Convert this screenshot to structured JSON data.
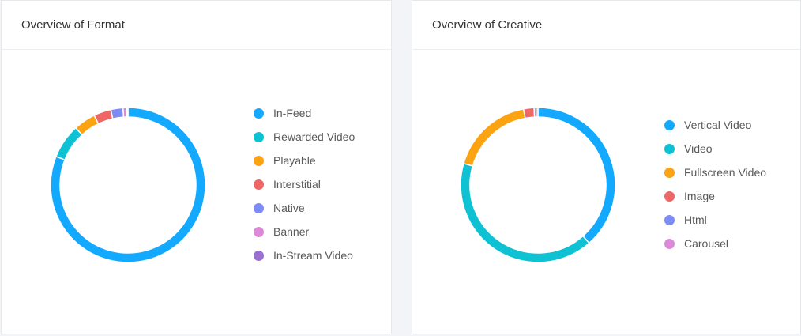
{
  "cards": [
    {
      "title": "Overview of Format"
    },
    {
      "title": "Overview of Creative"
    }
  ],
  "chart_data": [
    {
      "type": "pie",
      "title": "Overview of Format",
      "legend_position": "right",
      "categories": [
        "In-Feed",
        "Rewarded Video",
        "Playable",
        "Interstitial",
        "Native",
        "Banner",
        "In-Stream Video"
      ],
      "values": [
        79,
        7,
        4.5,
        3.5,
        2.5,
        0.8,
        0.2
      ],
      "colors": [
        "#12a9ff",
        "#0fc2d3",
        "#fca311",
        "#ee6666",
        "#7d8cf5",
        "#dc8ad8",
        "#9a6fcf"
      ]
    },
    {
      "type": "pie",
      "title": "Overview of Creative",
      "legend_position": "right",
      "categories": [
        "Vertical Video",
        "Video",
        "Fullscreen Video",
        "Image",
        "Html",
        "Carousel"
      ],
      "values": [
        38.5,
        41,
        17.5,
        2.2,
        0.4,
        0.4
      ],
      "colors": [
        "#12a9ff",
        "#0fc2d3",
        "#fca311",
        "#ee6666",
        "#7d8cf5",
        "#dc8ad8"
      ]
    }
  ]
}
